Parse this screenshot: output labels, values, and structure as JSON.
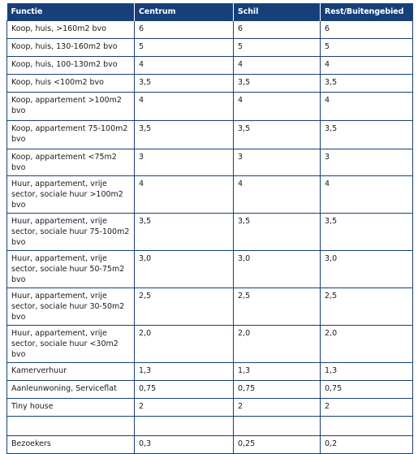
{
  "headers": [
    "Functie",
    "Centrum",
    "Schil",
    "Rest/Buitengebied"
  ],
  "rows": [
    {
      "functie": "Koop, huis, >160m2 bvo",
      "centrum": "6",
      "schil": "6",
      "rest": "6"
    },
    {
      "functie": "Koop, huis, 130-160m2 bvo",
      "centrum": "5",
      "schil": "5",
      "rest": "5"
    },
    {
      "functie": "Koop, huis, 100-130m2 bvo",
      "centrum": "4",
      "schil": "4",
      "rest": "4"
    },
    {
      "functie": "Koop, huis <100m2 bvo",
      "centrum": "3,5",
      "schil": "3,5",
      "rest": "3,5"
    },
    {
      "functie": "Koop, appartement >100m2 bvo",
      "centrum": "4",
      "schil": "4",
      "rest": "4"
    },
    {
      "functie": "Koop, appartement 75-100m2 bvo",
      "centrum": "3,5",
      "schil": "3,5",
      "rest": "3,5"
    },
    {
      "functie": "Koop, appartement <75m2 bvo",
      "centrum": "3",
      "schil": "3",
      "rest": "3"
    },
    {
      "functie": "Huur, appartement, vrije sector, sociale huur >100m2 bvo",
      "centrum": "4",
      "schil": "4",
      "rest": "4"
    },
    {
      "functie": "Huur, appartement, vrije sector, sociale huur 75-100m2 bvo",
      "centrum": "3,5",
      "schil": "3,5",
      "rest": "3,5"
    },
    {
      "functie": "Huur, appartement, vrije sector, sociale huur 50-75m2 bvo",
      "centrum": "3,0",
      "schil": "3,0",
      "rest": "3,0"
    },
    {
      "functie": "Huur, appartement, vrije sector, sociale huur 30-50m2 bvo",
      "centrum": "2,5",
      "schil": "2,5",
      "rest": "2,5"
    },
    {
      "functie": "Huur, appartement, vrije sector, sociale huur <30m2 bvo",
      "centrum": "2,0",
      "schil": "2,0",
      "rest": "2,0"
    },
    {
      "functie": "Kamerverhuur",
      "centrum": "1,3",
      "schil": "1,3",
      "rest": "1,3"
    },
    {
      "functie": "Aanleunwoning, Serviceflat",
      "centrum": "0,75",
      "schil": "0,75",
      "rest": "0,75"
    },
    {
      "functie": "Tiny house",
      "centrum": "2",
      "schil": "2",
      "rest": "2"
    },
    {
      "functie": "",
      "centrum": "",
      "schil": "",
      "rest": ""
    },
    {
      "functie": "Bezoekers",
      "centrum": "0,3",
      "schil": "0,25",
      "rest": "0,2"
    }
  ]
}
